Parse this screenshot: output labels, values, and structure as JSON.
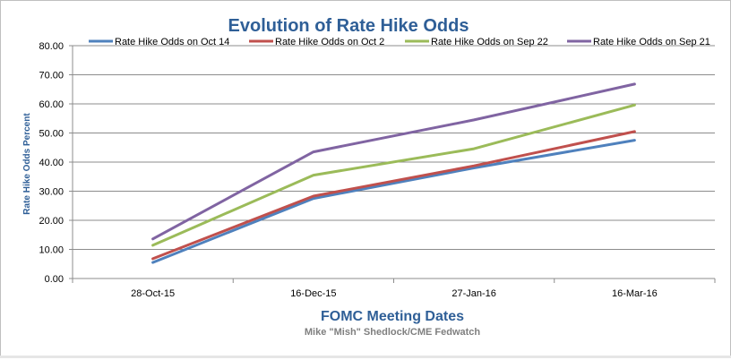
{
  "chart_data": {
    "type": "line",
    "title": "Evolution of Rate Hike Odds",
    "xlabel": "FOMC Meeting Dates",
    "ylabel": "Rate  Hike  Odds  Percent",
    "subtitle": "Mike \"Mish\" Shedlock/CME Fedwatch",
    "categories": [
      "28-Oct-15",
      "16-Dec-15",
      "27-Jan-16",
      "16-Mar-16"
    ],
    "ylim": [
      0,
      80
    ],
    "yticks": [
      "0.00",
      "10.00",
      "20.00",
      "30.00",
      "40.00",
      "50.00",
      "60.00",
      "70.00",
      "80.00"
    ],
    "grid": true,
    "legend_position": "top",
    "series": [
      {
        "name": "Rate Hike Odds on Oct 14",
        "color": "#4f81bd",
        "values": [
          5.5,
          27.5,
          38.0,
          47.5
        ]
      },
      {
        "name": "Rate Hike Odds on Oct 2",
        "color": "#c0504d",
        "values": [
          6.8,
          28.3,
          38.7,
          50.5
        ]
      },
      {
        "name": "Rate Hike Odds on Sep 22",
        "color": "#9bbb59",
        "values": [
          11.4,
          35.5,
          44.6,
          59.6
        ]
      },
      {
        "name": "Rate Hike Odds on Sep 21",
        "color": "#8064a2",
        "values": [
          13.6,
          43.5,
          54.5,
          66.8
        ]
      }
    ]
  }
}
